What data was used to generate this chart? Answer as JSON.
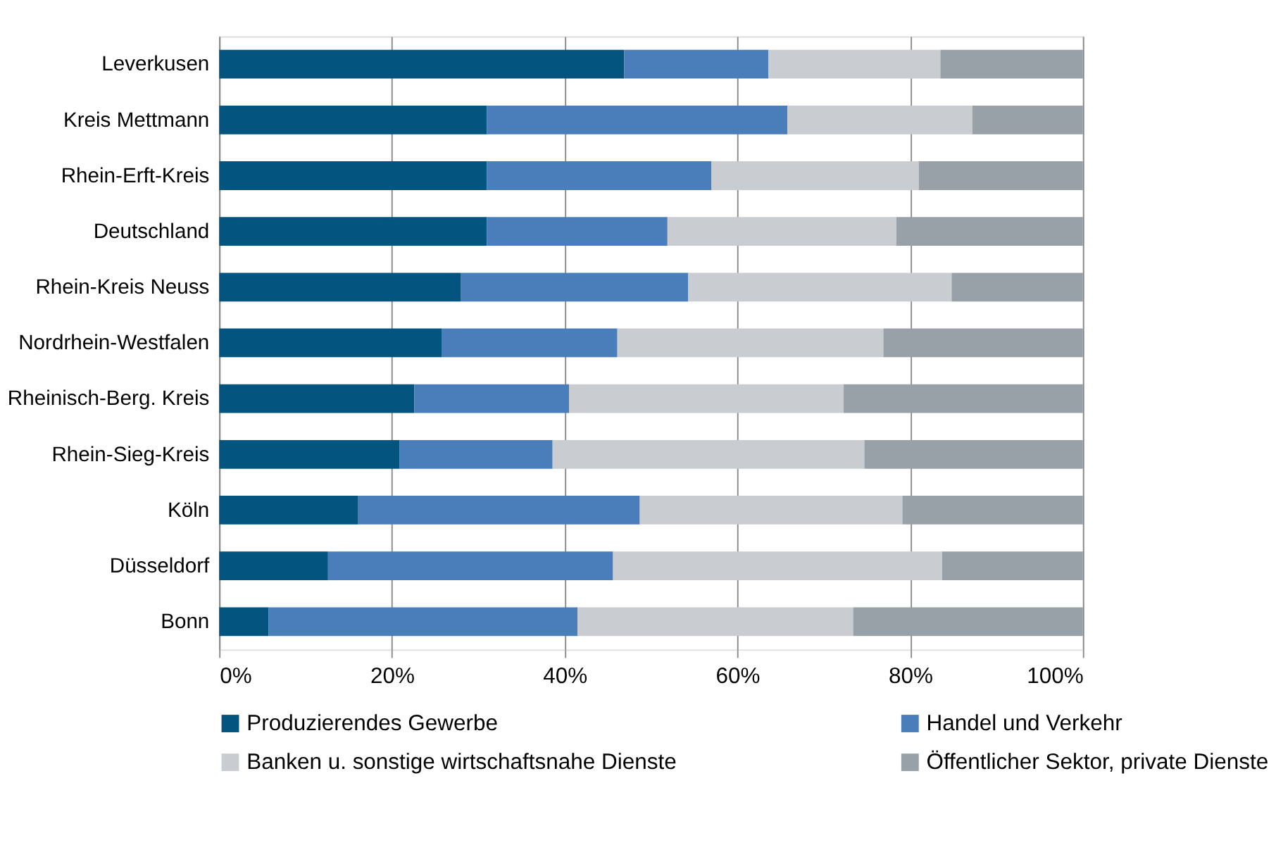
{
  "chart_data": {
    "type": "bar",
    "orientation": "horizontal",
    "stacked": true,
    "categories": [
      "Leverkusen",
      "Kreis Mettmann",
      "Rhein-Erft-Kreis",
      "Deutschland",
      "Rhein-Kreis Neuss",
      "Nordrhein-Westfalen",
      "Rheinisch-Berg. Kreis",
      "Rhein-Sieg-Kreis",
      "Köln",
      "Düsseldorf",
      "Bonn"
    ],
    "series": [
      {
        "name": "Produzierendes Gewerbe",
        "color": "#03547f",
        "values": [
          46.9,
          31.0,
          31.0,
          31.0,
          28.0,
          25.8,
          22.6,
          20.9,
          16.1,
          12.6,
          5.7
        ]
      },
      {
        "name": "Handel und Verkehr",
        "color": "#4a7ebb",
        "values": [
          16.7,
          34.8,
          26.0,
          20.9,
          26.3,
          20.3,
          17.9,
          17.7,
          32.6,
          33.0,
          35.8
        ]
      },
      {
        "name": "Banken u. sonstige wirtschaftsnahe Dienste",
        "color": "#c9ccd1",
        "values": [
          19.9,
          21.4,
          24.0,
          26.5,
          30.5,
          30.8,
          31.8,
          36.1,
          30.4,
          38.1,
          31.9
        ]
      },
      {
        "name": "Öffentlicher Sektor, private Dienste",
        "color": "#98a0a8",
        "values": [
          16.5,
          12.8,
          19.0,
          21.6,
          15.2,
          23.1,
          27.7,
          25.3,
          20.9,
          16.3,
          26.6
        ]
      }
    ],
    "xlim": [
      0,
      100
    ],
    "xticks": [
      {
        "value": 0,
        "label": "0%"
      },
      {
        "value": 20,
        "label": "20%"
      },
      {
        "value": 40,
        "label": "40%"
      },
      {
        "value": 60,
        "label": "60%"
      },
      {
        "value": 80,
        "label": "80%"
      },
      {
        "value": 100,
        "label": "100%"
      }
    ],
    "grid": "x",
    "legend": "bottom"
  }
}
